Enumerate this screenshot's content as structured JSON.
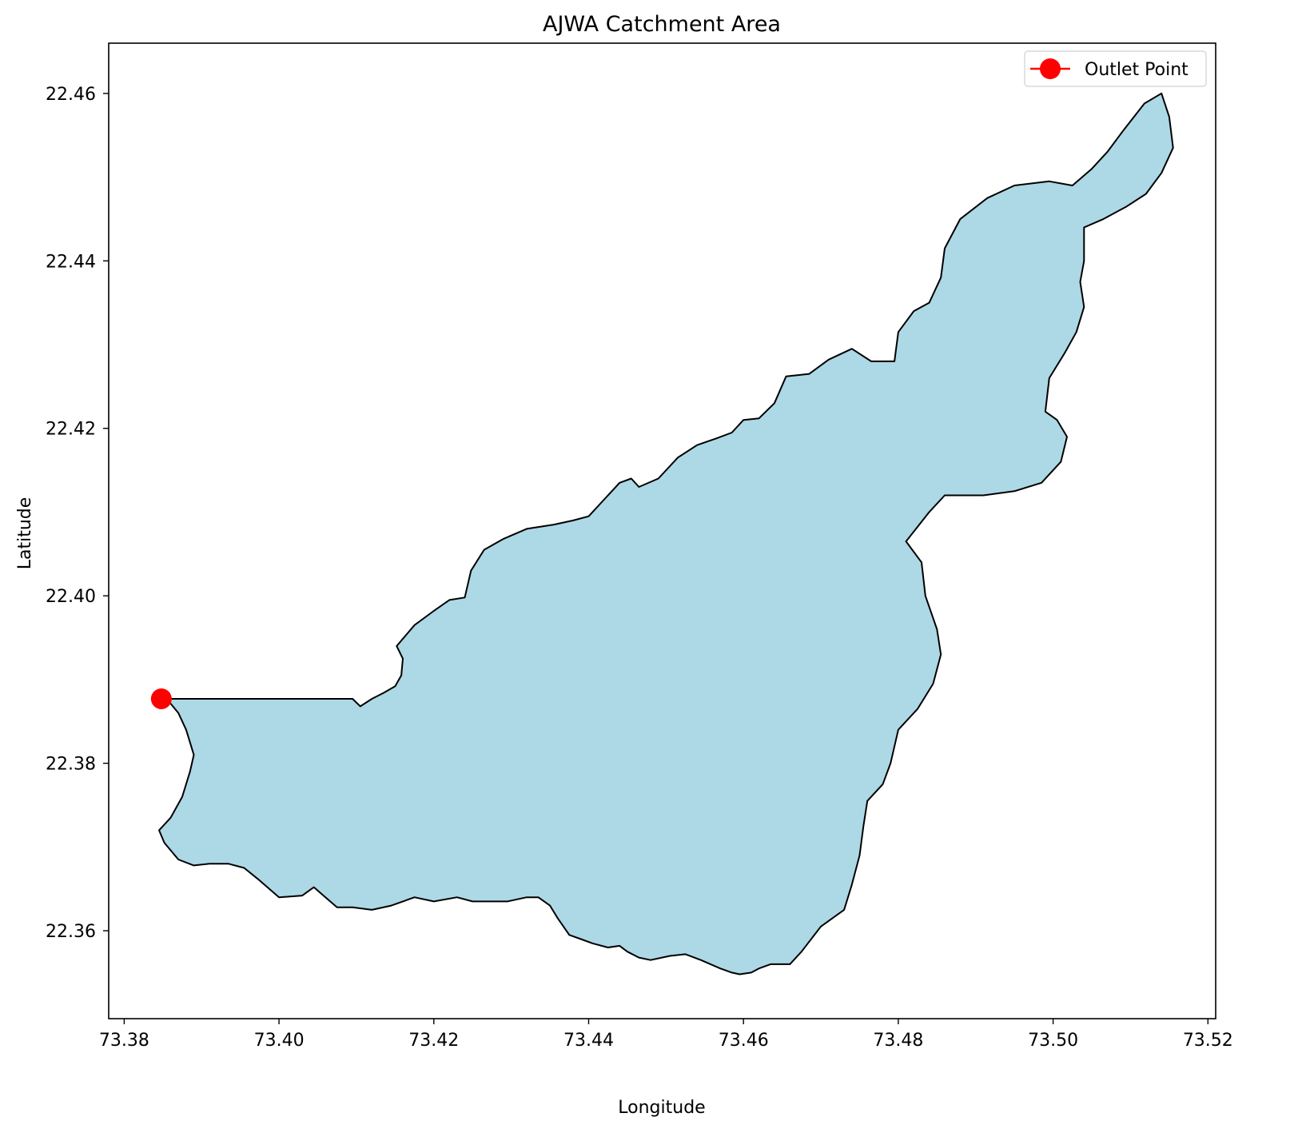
{
  "chart_data": {
    "type": "map",
    "title": "AJWA Catchment Area",
    "xlabel": "Longitude",
    "ylabel": "Latitude",
    "xlim": [
      73.378,
      73.521
    ],
    "ylim": [
      22.3495,
      22.466
    ],
    "x_ticks": [
      {
        "value": 73.38,
        "label": "73.38"
      },
      {
        "value": 73.4,
        "label": "73.40"
      },
      {
        "value": 73.42,
        "label": "73.42"
      },
      {
        "value": 73.44,
        "label": "73.44"
      },
      {
        "value": 73.46,
        "label": "73.46"
      },
      {
        "value": 73.48,
        "label": "73.48"
      },
      {
        "value": 73.5,
        "label": "73.50"
      },
      {
        "value": 73.52,
        "label": "73.52"
      }
    ],
    "y_ticks": [
      {
        "value": 22.36,
        "label": "22.36"
      },
      {
        "value": 22.38,
        "label": "22.38"
      },
      {
        "value": 22.4,
        "label": "22.40"
      },
      {
        "value": 22.42,
        "label": "22.42"
      },
      {
        "value": 22.44,
        "label": "22.44"
      },
      {
        "value": 22.46,
        "label": "22.46"
      }
    ],
    "catchment": {
      "fill": "#add8e6",
      "stroke": "#000000",
      "boundary": [
        [
          73.3855,
          22.3877
        ],
        [
          73.4095,
          22.3877
        ],
        [
          73.4105,
          22.3868
        ],
        [
          73.412,
          22.3877
        ],
        [
          73.4135,
          22.3884
        ],
        [
          73.415,
          22.3892
        ],
        [
          73.4158,
          22.3905
        ],
        [
          73.416,
          22.3925
        ],
        [
          73.4152,
          22.394
        ],
        [
          73.4175,
          22.3965
        ],
        [
          73.42,
          22.3982
        ],
        [
          73.422,
          22.3995
        ],
        [
          73.424,
          22.3998
        ],
        [
          73.4248,
          22.403
        ],
        [
          73.4265,
          22.4055
        ],
        [
          73.429,
          22.4068
        ],
        [
          73.432,
          22.408
        ],
        [
          73.4355,
          22.4085
        ],
        [
          73.438,
          22.409
        ],
        [
          73.44,
          22.4095
        ],
        [
          73.4425,
          22.412
        ],
        [
          73.444,
          22.4135
        ],
        [
          73.4455,
          22.414
        ],
        [
          73.4465,
          22.413
        ],
        [
          73.449,
          22.414
        ],
        [
          73.4515,
          22.4165
        ],
        [
          73.454,
          22.418
        ],
        [
          73.4565,
          22.4188
        ],
        [
          73.4585,
          22.4195
        ],
        [
          73.46,
          22.421
        ],
        [
          73.462,
          22.4212
        ],
        [
          73.464,
          22.423
        ],
        [
          73.4655,
          22.4262
        ],
        [
          73.4685,
          22.4265
        ],
        [
          73.471,
          22.4282
        ],
        [
          73.474,
          22.4295
        ],
        [
          73.4765,
          22.428
        ],
        [
          73.4795,
          22.428
        ],
        [
          73.48,
          22.4315
        ],
        [
          73.482,
          22.434
        ],
        [
          73.484,
          22.435
        ],
        [
          73.4855,
          22.438
        ],
        [
          73.486,
          22.4415
        ],
        [
          73.488,
          22.445
        ],
        [
          73.4915,
          22.4475
        ],
        [
          73.495,
          22.449
        ],
        [
          73.4995,
          22.4495
        ],
        [
          73.5025,
          22.449
        ],
        [
          73.505,
          22.451
        ],
        [
          73.507,
          22.453
        ],
        [
          73.509,
          22.4555
        ],
        [
          73.5118,
          22.4588
        ],
        [
          73.514,
          22.46
        ],
        [
          73.515,
          22.4572
        ],
        [
          73.5155,
          22.4535
        ],
        [
          73.514,
          22.4505
        ],
        [
          73.512,
          22.448
        ],
        [
          73.5095,
          22.4465
        ],
        [
          73.5065,
          22.445
        ],
        [
          73.504,
          22.444
        ],
        [
          73.504,
          22.44
        ],
        [
          73.5035,
          22.4375
        ],
        [
          73.504,
          22.4345
        ],
        [
          73.503,
          22.4315
        ],
        [
          73.5015,
          22.429
        ],
        [
          73.4995,
          22.426
        ],
        [
          73.499,
          22.422
        ],
        [
          73.5005,
          22.421
        ],
        [
          73.5018,
          22.419
        ],
        [
          73.501,
          22.416
        ],
        [
          73.4985,
          22.4135
        ],
        [
          73.495,
          22.4125
        ],
        [
          73.491,
          22.412
        ],
        [
          73.486,
          22.412
        ],
        [
          73.484,
          22.41
        ],
        [
          73.481,
          22.4065
        ],
        [
          73.483,
          22.404
        ],
        [
          73.4835,
          22.4
        ],
        [
          73.485,
          22.396
        ],
        [
          73.4855,
          22.393
        ],
        [
          73.4845,
          22.3895
        ],
        [
          73.4825,
          22.3865
        ],
        [
          73.48,
          22.384
        ],
        [
          73.479,
          22.38
        ],
        [
          73.478,
          22.3775
        ],
        [
          73.476,
          22.3755
        ],
        [
          73.4755,
          22.3725
        ],
        [
          73.475,
          22.369
        ],
        [
          73.474,
          22.3655
        ],
        [
          73.473,
          22.3625
        ],
        [
          73.47,
          22.3605
        ],
        [
          73.4675,
          22.3575
        ],
        [
          73.466,
          22.356
        ],
        [
          73.4635,
          22.356
        ],
        [
          73.462,
          22.3555
        ],
        [
          73.461,
          22.355
        ],
        [
          73.4595,
          22.3548
        ],
        [
          73.4585,
          22.355
        ],
        [
          73.457,
          22.3555
        ],
        [
          73.4545,
          22.3565
        ],
        [
          73.4525,
          22.3572
        ],
        [
          73.4505,
          22.357
        ],
        [
          73.448,
          22.3565
        ],
        [
          73.4465,
          22.3568
        ],
        [
          73.445,
          22.3575
        ],
        [
          73.444,
          22.3582
        ],
        [
          73.4425,
          22.358
        ],
        [
          73.4405,
          22.3585
        ],
        [
          73.439,
          22.359
        ],
        [
          73.4375,
          22.3595
        ],
        [
          73.436,
          22.3615
        ],
        [
          73.435,
          22.363
        ],
        [
          73.4335,
          22.364
        ],
        [
          73.432,
          22.364
        ],
        [
          73.4295,
          22.3635
        ],
        [
          73.427,
          22.3635
        ],
        [
          73.425,
          22.3635
        ],
        [
          73.423,
          22.364
        ],
        [
          73.42,
          22.3635
        ],
        [
          73.4175,
          22.364
        ],
        [
          73.4145,
          22.363
        ],
        [
          73.412,
          22.3625
        ],
        [
          73.4095,
          22.3628
        ],
        [
          73.4075,
          22.3628
        ],
        [
          73.406,
          22.364
        ],
        [
          73.4045,
          22.3652
        ],
        [
          73.403,
          22.3642
        ],
        [
          73.4,
          22.364
        ],
        [
          73.3975,
          22.366
        ],
        [
          73.3955,
          22.3675
        ],
        [
          73.3935,
          22.368
        ],
        [
          73.391,
          22.368
        ],
        [
          73.389,
          22.3678
        ],
        [
          73.387,
          22.3685
        ],
        [
          73.3852,
          22.3705
        ],
        [
          73.3845,
          22.372
        ],
        [
          73.386,
          22.3735
        ],
        [
          73.3875,
          22.376
        ],
        [
          73.3885,
          22.379
        ],
        [
          73.389,
          22.381
        ],
        [
          73.388,
          22.384
        ],
        [
          73.387,
          22.386
        ]
      ]
    },
    "series": [
      {
        "name": "Outlet Point",
        "type": "point",
        "x": 73.3848,
        "y": 22.3877,
        "color": "#ff0000"
      }
    ],
    "legend": {
      "position": "top-right",
      "entries": [
        "Outlet Point"
      ]
    }
  }
}
